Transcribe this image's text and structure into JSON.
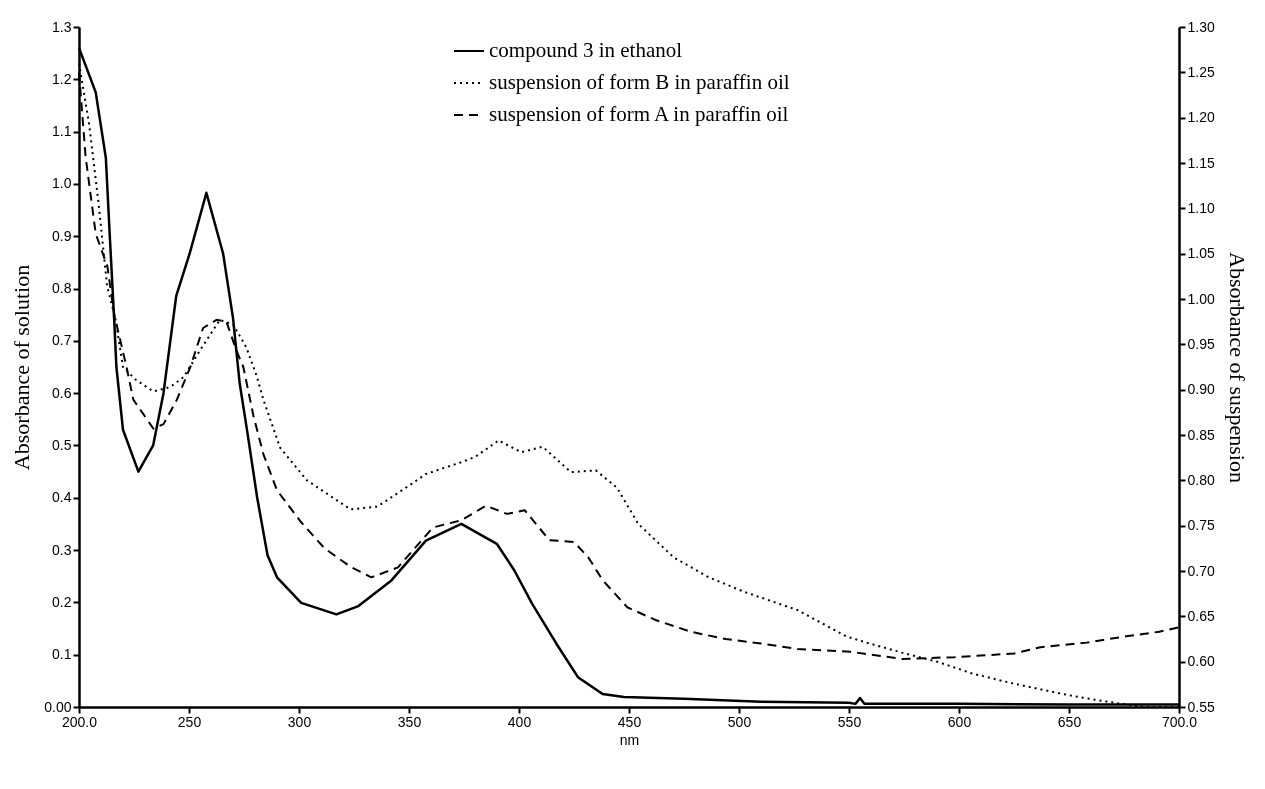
{
  "chart_data": {
    "type": "line",
    "xlabel": "nm",
    "ylabel": "Absorbance of solution",
    "y2label": "Absorbance of suspension",
    "legend": "top",
    "grid": false,
    "marker": "none",
    "xlim": [
      200,
      700
    ],
    "xticks": [
      {
        "value": 200,
        "label": "200.0"
      },
      250,
      300,
      350,
      400,
      450,
      500,
      550,
      600,
      650,
      {
        "value": 700,
        "label": "700.0"
      }
    ],
    "ylim": [
      0,
      1.3
    ],
    "yticks": [
      {
        "value": 0,
        "label": "0.00"
      },
      0.1,
      0.2,
      0.3,
      0.4,
      0.5,
      0.6,
      0.7,
      0.8,
      0.9,
      {
        "value": 1,
        "label": "1.0"
      },
      1.1,
      1.2,
      1.3
    ],
    "y2lim": [
      0.55,
      1.3
    ],
    "y2ticks": [
      0.55,
      {
        "value": 0.6,
        "label": "0.60"
      },
      0.65,
      {
        "value": 0.7,
        "label": "0.70"
      },
      0.75,
      {
        "value": 0.8,
        "label": "0.80"
      },
      0.85,
      {
        "value": 0.9,
        "label": "0.90"
      },
      0.95,
      {
        "value": 1,
        "label": "1.00"
      },
      1.05,
      {
        "value": 1.1,
        "label": "1.10"
      },
      1.15,
      {
        "value": 1.2,
        "label": "1.20"
      },
      1.25,
      {
        "value": 1.3,
        "label": "1.30"
      }
    ],
    "series": [
      {
        "name": "compound 3 in ethanol",
        "color": "#000000",
        "line_style": "solid",
        "x": [
          200,
          207.6,
          212.2,
          214,
          216,
          217,
          220,
          227,
          233.7,
          238.4,
          244.2,
          250.3,
          257.9,
          265.5,
          270,
          273,
          276.5,
          281,
          285.7,
          290,
          301,
          317,
          327,
          342,
          357.7,
          373.8,
          389.9,
          397.9,
          406,
          417,
          426.8,
          438,
          447.7,
          475,
          510,
          550,
          553,
          555,
          557,
          600,
          650,
          700
        ],
        "values": [
          1.26,
          1.175,
          1.05,
          0.9,
          0.74,
          0.65,
          0.53,
          0.45,
          0.5,
          0.6,
          0.786,
          0.867,
          0.983,
          0.867,
          0.744,
          0.62,
          0.526,
          0.4,
          0.29,
          0.248,
          0.199,
          0.177,
          0.193,
          0.242,
          0.318,
          0.35,
          0.312,
          0.261,
          0.197,
          0.121,
          0.057,
          0.025,
          0.019,
          0.016,
          0.01,
          0.008,
          0.006,
          0.017,
          0.006,
          0.006,
          0.005,
          0.005
        ]
      },
      {
        "name": "suspension of form B in paraffin oil",
        "color": "#000000",
        "line_style": "dotted",
        "axis": "y2",
        "x": [
          200,
          204.6,
          209,
          212.8,
          216.5,
          220,
          225.8,
          233.8,
          241.5,
          247.6,
          254.9,
          264,
          270,
          276,
          280.8,
          283.8,
          291.4,
          303.6,
          323.4,
          335.6,
          349.3,
          357.7,
          373.8,
          380.2,
          390.7,
          401.1,
          410.8,
          423.6,
          434.9,
          444.5,
          454.2,
          470.3,
          486.3,
          502.4,
          526.5,
          548.7,
          558,
          574,
          590,
          606,
          621,
          636,
          652,
          667,
          684,
          700
        ],
        "values": [
          1.26,
          1.193,
          1.103,
          1.014,
          0.979,
          0.925,
          0.911,
          0.898,
          0.903,
          0.914,
          0.943,
          0.977,
          0.972,
          0.947,
          0.915,
          0.889,
          0.836,
          0.8,
          0.768,
          0.771,
          0.793,
          0.807,
          0.82,
          0.826,
          0.844,
          0.831,
          0.837,
          0.809,
          0.811,
          0.792,
          0.752,
          0.715,
          0.693,
          0.677,
          0.657,
          0.628,
          0.621,
          0.61,
          0.6,
          0.587,
          0.578,
          0.57,
          0.562,
          0.556,
          0.55,
          0.55
        ]
      },
      {
        "name": "suspension of form A in paraffin oil",
        "color": "#000000",
        "line_style": "dashed",
        "axis": "y2",
        "x": [
          200,
          203,
          207.6,
          212.9,
          216,
          221.6,
          224.7,
          233.8,
          238.4,
          244.5,
          250.6,
          256.4,
          262.5,
          267,
          271.6,
          274.7,
          279.3,
          283.8,
          290,
          300.9,
          311.6,
          323.8,
          332.9,
          345,
          360.9,
          373.8,
          385,
          394.5,
          402.6,
          413.8,
          425,
          431.5,
          438,
          449.2,
          462,
          478,
          494,
          510,
          526.5,
          550.6,
          574,
          598,
          625,
          637,
          658,
          676,
          691,
          700
        ],
        "values": [
          1.25,
          1.157,
          1.072,
          1.036,
          0.983,
          0.925,
          0.889,
          0.857,
          0.862,
          0.889,
          0.925,
          0.968,
          0.977,
          0.975,
          0.943,
          0.925,
          0.871,
          0.829,
          0.789,
          0.754,
          0.725,
          0.704,
          0.693,
          0.704,
          0.748,
          0.756,
          0.772,
          0.763,
          0.767,
          0.734,
          0.732,
          0.715,
          0.69,
          0.66,
          0.646,
          0.633,
          0.625,
          0.62,
          0.614,
          0.611,
          0.603,
          0.605,
          0.609,
          0.616,
          0.621,
          0.628,
          0.633,
          0.638
        ]
      }
    ]
  }
}
